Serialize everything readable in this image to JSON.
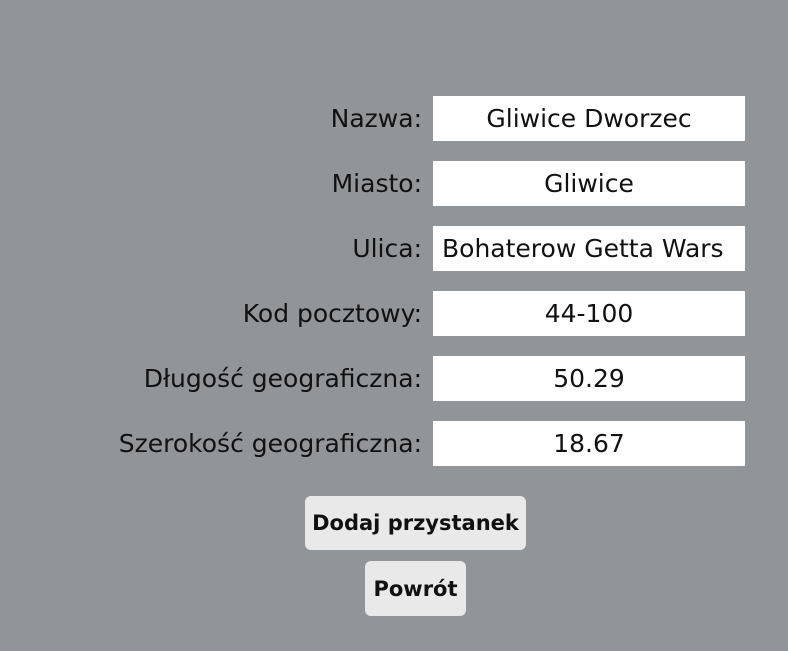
{
  "form": {
    "fields": [
      {
        "label": "Nazwa:",
        "value": "Gliwice Dworzec"
      },
      {
        "label": "Miasto:",
        "value": "Gliwice"
      },
      {
        "label": "Ulica:",
        "value": "Bohaterow Getta Wars"
      },
      {
        "label": "Kod pocztowy:",
        "value": "44-100"
      },
      {
        "label": "Długość geograficzna:",
        "value": "50.29"
      },
      {
        "label": "Szerokość geograficzna:",
        "value": "18.67"
      }
    ]
  },
  "buttons": {
    "add_label": "Dodaj przystanek",
    "back_label": "Powrót"
  },
  "colors": {
    "background": "#929598",
    "input_background": "#ffffff",
    "button_background": "#e9e9e9"
  }
}
